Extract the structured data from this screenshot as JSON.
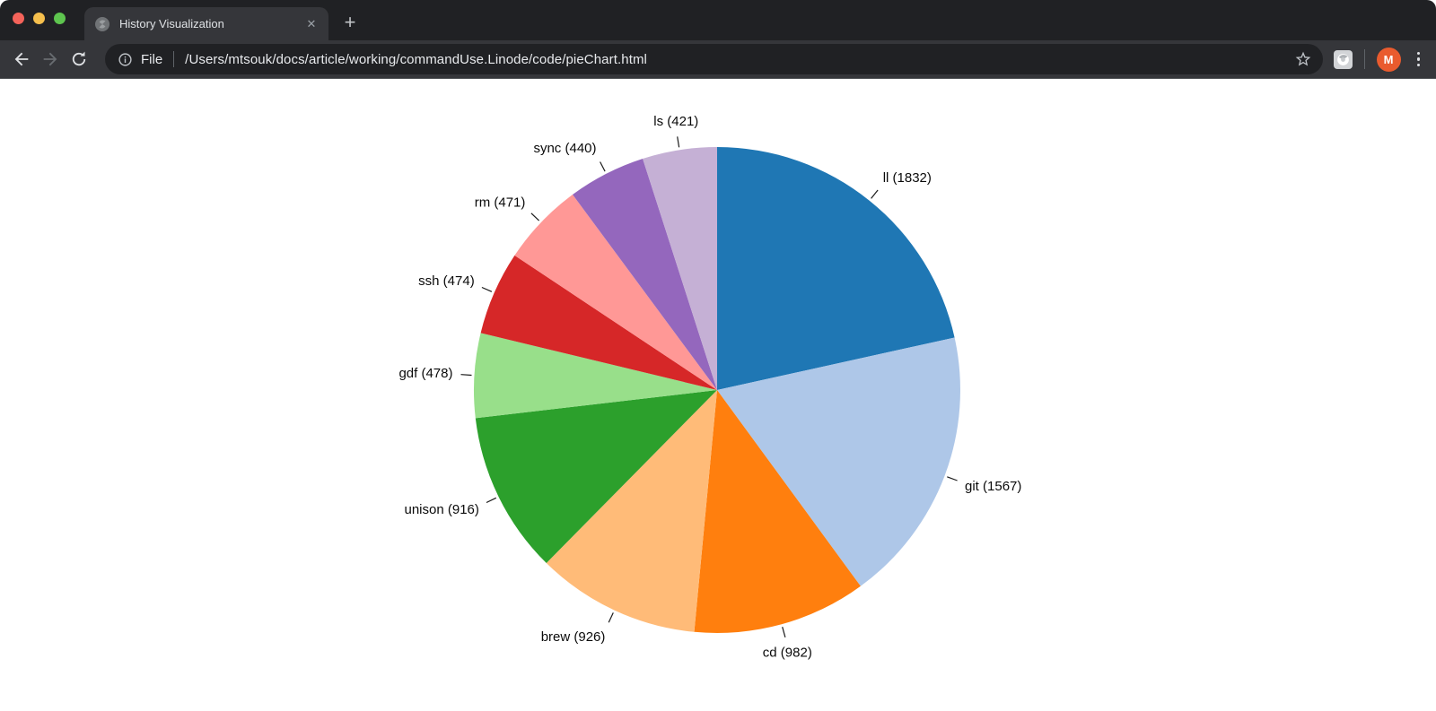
{
  "browser": {
    "tab": {
      "title": "History Visualization",
      "close_glyph": "✕"
    },
    "new_tab_glyph": "+",
    "address": {
      "scheme_label": "File",
      "url": "/Users/mtsouk/docs/article/working/commandUse.Linode/code/pieChart.html"
    },
    "avatar_letter": "M",
    "colors": {
      "traffic_red": "#f4635a",
      "traffic_yellow": "#f5bf4d",
      "traffic_green": "#5ec54f",
      "tabstrip_bg": "#202124",
      "toolbar_bg": "#35363a",
      "omnibox_bg": "#202124",
      "avatar_bg": "#e95b2e"
    }
  },
  "chart_data": {
    "type": "pie",
    "title": "",
    "label_format": "{label} ({value})",
    "direction": "clockwise",
    "start_angle_deg": 0,
    "legend_position": "outside-labels",
    "items": [
      {
        "label": "ll",
        "value": 1832,
        "color": "#1f77b4"
      },
      {
        "label": "git",
        "value": 1567,
        "color": "#aec7e8"
      },
      {
        "label": "cd",
        "value": 982,
        "color": "#ff7f0e"
      },
      {
        "label": "brew",
        "value": 926,
        "color": "#ffbb78"
      },
      {
        "label": "unison",
        "value": 916,
        "color": "#2ca02c"
      },
      {
        "label": "gdf",
        "value": 478,
        "color": "#98df8a"
      },
      {
        "label": "ssh",
        "value": 474,
        "color": "#d62728"
      },
      {
        "label": "rm",
        "value": 471,
        "color": "#ff9896"
      },
      {
        "label": "sync",
        "value": 440,
        "color": "#9467bd"
      },
      {
        "label": "ls",
        "value": 421,
        "color": "#c5b0d5"
      }
    ]
  }
}
